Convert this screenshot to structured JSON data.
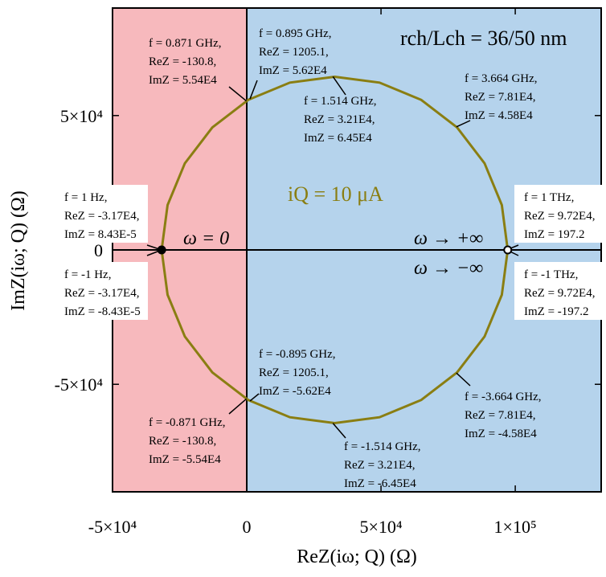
{
  "chart_data": {
    "type": "nyquist",
    "xlabel": "ReZ(iω; Q) (Ω)",
    "ylabel": "ImZ(iω; Q) (Ω)",
    "xlim": [
      -50000,
      132000
    ],
    "ylim": [
      -90000,
      90000
    ],
    "xticks": [
      {
        "value": -50000,
        "label": "-5×10⁴"
      },
      0,
      {
        "value": 50000,
        "label": "5×10⁴"
      },
      {
        "value": 100000,
        "label": "1×10⁵"
      }
    ],
    "yticks": [
      {
        "value": -50000,
        "label": "-5×10⁴"
      },
      0,
      {
        "value": 50000,
        "label": "5×10⁴"
      }
    ],
    "regions": [
      {
        "xrange": [
          -50000,
          0
        ],
        "color": "#f7b9bd"
      },
      {
        "xrange": [
          0,
          132000
        ],
        "color": "#b5d3ec"
      }
    ],
    "color": "#8a7e12",
    "x": [
      97200,
      95003,
      88564,
      78323,
      64975,
      49431,
      32750,
      16069,
      525,
      -12823,
      -23064,
      -29503,
      -31700,
      -29503,
      -23064,
      -12823,
      525,
      16069,
      32750,
      49431,
      64975,
      78323,
      88564,
      95003,
      97200
    ],
    "values": [
      0,
      16681,
      32225,
      45573,
      55814,
      62253,
      64450,
      62253,
      55814,
      45573,
      32225,
      16681,
      0,
      -16681,
      -32225,
      -45573,
      -55814,
      -62253,
      -64450,
      -62253,
      -55814,
      -45573,
      -32225,
      -16681,
      0
    ],
    "points": [
      {
        "x": -31700,
        "y": 0,
        "filled": true
      },
      {
        "x": 97200,
        "y": 0,
        "filled": false
      }
    ],
    "labels": [
      "ω = 0",
      "ω → +∞",
      "ω → −∞",
      "iQ = 10 μA",
      "rch/Lch = 36/50 nm"
    ],
    "annotations": [
      {
        "x": -130.8,
        "y": 55400,
        "text": [
          "f = 0.871 GHz,",
          "ReZ = -130.8,",
          "ImZ = 5.54E4"
        ]
      },
      {
        "x": 1205.1,
        "y": 56200,
        "text": [
          "f = 0.895 GHz,",
          "ReZ = 1205.1,",
          "ImZ = 5.62E4"
        ]
      },
      {
        "x": 32100,
        "y": 64500,
        "text": [
          "f = 1.514 GHz,",
          "ReZ = 3.21E4,",
          "ImZ = 6.45E4"
        ]
      },
      {
        "x": 78100,
        "y": 45800,
        "text": [
          "f = 3.664 GHz,",
          "ReZ = 7.81E4,",
          "ImZ = 4.58E4"
        ]
      },
      {
        "x": -31700,
        "y": 8.43e-05,
        "text": [
          "f = 1 Hz,",
          "ReZ = -3.17E4,",
          "ImZ = 8.43E-5"
        ]
      },
      {
        "x": -31700,
        "y": -8.43e-05,
        "text": [
          "f = -1 Hz,",
          "ReZ = -3.17E4,",
          "ImZ = -8.43E-5"
        ]
      },
      {
        "x": 97200,
        "y": 197.2,
        "text": [
          "f = 1 THz,",
          "ReZ = 9.72E4,",
          "ImZ = 197.2"
        ]
      },
      {
        "x": 97200,
        "y": -197.2,
        "text": [
          "f = -1 THz,",
          "ReZ = 9.72E4,",
          "ImZ = -197.2"
        ]
      },
      {
        "x": 1205.1,
        "y": -56200,
        "text": [
          "f = -0.895 GHz,",
          "ReZ = 1205.1,",
          "ImZ = -5.62E4"
        ]
      },
      {
        "x": -130.8,
        "y": -55400,
        "text": [
          "f = -0.871 GHz,",
          "ReZ = -130.8,",
          "ImZ = -5.54E4"
        ]
      },
      {
        "x": 32100,
        "y": -64500,
        "text": [
          "f = -1.514 GHz,",
          "ReZ = 3.21E4,",
          "ImZ = -6.45E4"
        ]
      },
      {
        "x": 78100,
        "y": -45800,
        "text": [
          "f = -3.664 GHz,",
          "ReZ = 7.81E4,",
          "ImZ = -4.58E4"
        ]
      }
    ]
  }
}
